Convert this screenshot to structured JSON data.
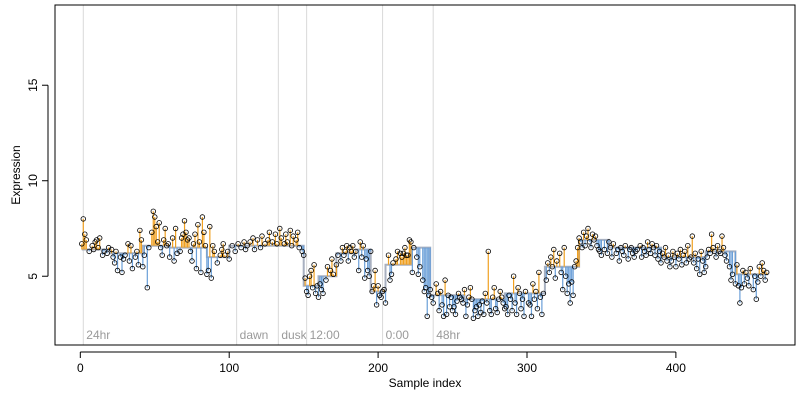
{
  "chart_data": {
    "type": "scatter",
    "title": "",
    "xlabel": "Sample index",
    "ylabel": "Expression",
    "xlim": [
      -17,
      480
    ],
    "ylim": [
      1.4,
      19.2
    ],
    "x_ticks": [
      0,
      100,
      200,
      300,
      400
    ],
    "y_ticks": [
      5,
      10,
      15
    ],
    "grid": false,
    "legend": "none",
    "colors": {
      "points_stroke": "#000000",
      "above_fit": "#f0a020",
      "below_fit": "#6a9fd8",
      "fitted_line": "#a8b0c0",
      "phase_line": "#d9d9d9",
      "phase_text": "#9a9a9a"
    },
    "phase_markers": [
      {
        "x": 2,
        "label": "24hr"
      },
      {
        "x": 105,
        "label": "dawn"
      },
      {
        "x": 133,
        "label": "dusk"
      },
      {
        "x": 152,
        "label": "12:00"
      },
      {
        "x": 203,
        "label": "0:00"
      },
      {
        "x": 237,
        "label": "48hr"
      }
    ],
    "fitted_segments": [
      {
        "x0": 1,
        "x1": 20,
        "y": 6.4
      },
      {
        "x0": 20,
        "x1": 42,
        "y": 6.2
      },
      {
        "x0": 42,
        "x1": 60,
        "y": 6.6
      },
      {
        "x0": 60,
        "x1": 85,
        "y": 6.5
      },
      {
        "x0": 85,
        "x1": 100,
        "y": 6.0
      },
      {
        "x0": 100,
        "x1": 150,
        "y": 6.6
      },
      {
        "x0": 150,
        "x1": 160,
        "y": 4.5
      },
      {
        "x0": 160,
        "x1": 172,
        "y": 5.0
      },
      {
        "x0": 172,
        "x1": 185,
        "y": 6.2
      },
      {
        "x0": 185,
        "x1": 195,
        "y": 6.4
      },
      {
        "x0": 195,
        "x1": 205,
        "y": 4.2
      },
      {
        "x0": 205,
        "x1": 222,
        "y": 5.6
      },
      {
        "x0": 222,
        "x1": 235,
        "y": 6.5
      },
      {
        "x0": 235,
        "x1": 258,
        "y": 4.0
      },
      {
        "x0": 258,
        "x1": 285,
        "y": 3.8
      },
      {
        "x0": 285,
        "x1": 312,
        "y": 4.1
      },
      {
        "x0": 312,
        "x1": 335,
        "y": 5.5
      },
      {
        "x0": 335,
        "x1": 355,
        "y": 6.9
      },
      {
        "x0": 355,
        "x1": 390,
        "y": 6.5
      },
      {
        "x0": 390,
        "x1": 420,
        "y": 6.0
      },
      {
        "x0": 420,
        "x1": 440,
        "y": 6.3
      },
      {
        "x0": 440,
        "x1": 462,
        "y": 5.1
      }
    ],
    "points": [
      [
        1,
        6.7
      ],
      [
        2,
        8.0
      ],
      [
        3,
        7.2
      ],
      [
        4,
        6.9
      ],
      [
        6,
        6.3
      ],
      [
        8,
        6.6
      ],
      [
        9,
        6.4
      ],
      [
        10,
        6.8
      ],
      [
        11,
        6.9
      ],
      [
        12,
        6.5
      ],
      [
        13,
        7.0
      ],
      [
        15,
        6.1
      ],
      [
        16,
        6.3
      ],
      [
        18,
        6.2
      ],
      [
        19,
        6.5
      ],
      [
        21,
        6.4
      ],
      [
        22,
        6.0
      ],
      [
        23,
        5.7
      ],
      [
        24,
        6.3
      ],
      [
        25,
        5.3
      ],
      [
        27,
        6.0
      ],
      [
        28,
        5.2
      ],
      [
        29,
        5.9
      ],
      [
        30,
        6.1
      ],
      [
        32,
        6.7
      ],
      [
        33,
        5.8
      ],
      [
        34,
        6.6
      ],
      [
        35,
        5.4
      ],
      [
        37,
        6.0
      ],
      [
        38,
        6.3
      ],
      [
        39,
        5.6
      ],
      [
        40,
        7.4
      ],
      [
        41,
        6.9
      ],
      [
        42,
        5.5
      ],
      [
        43,
        6.1
      ],
      [
        45,
        4.4
      ],
      [
        46,
        6.5
      ],
      [
        48,
        7.3
      ],
      [
        49,
        8.4
      ],
      [
        50,
        8.1
      ],
      [
        51,
        7.6
      ],
      [
        52,
        6.8
      ],
      [
        53,
        7.8
      ],
      [
        54,
        6.5
      ],
      [
        55,
        6.1
      ],
      [
        56,
        6.9
      ],
      [
        57,
        7.5
      ],
      [
        58,
        6.6
      ],
      [
        59,
        6.7
      ],
      [
        60,
        6.0
      ],
      [
        62,
        7.0
      ],
      [
        63,
        5.8
      ],
      [
        64,
        7.5
      ],
      [
        65,
        6.2
      ],
      [
        67,
        6.3
      ],
      [
        68,
        7.0
      ],
      [
        69,
        7.2
      ],
      [
        70,
        7.9
      ],
      [
        71,
        7.3
      ],
      [
        72,
        6.9
      ],
      [
        73,
        7.0
      ],
      [
        74,
        6.3
      ],
      [
        75,
        5.8
      ],
      [
        76,
        6.7
      ],
      [
        77,
        7.2
      ],
      [
        78,
        5.4
      ],
      [
        79,
        7.7
      ],
      [
        80,
        6.8
      ],
      [
        81,
        5.2
      ],
      [
        82,
        8.1
      ],
      [
        83,
        7.3
      ],
      [
        84,
        6.6
      ],
      [
        85,
        5.1
      ],
      [
        86,
        5.3
      ],
      [
        87,
        7.6
      ],
      [
        88,
        4.9
      ],
      [
        89,
        6.6
      ],
      [
        90,
        6.3
      ],
      [
        92,
        5.7
      ],
      [
        94,
        6.1
      ],
      [
        95,
        6.4
      ],
      [
        96,
        6.7
      ],
      [
        97,
        6.1
      ],
      [
        99,
        6.3
      ],
      [
        100,
        5.9
      ],
      [
        102,
        6.6
      ],
      [
        104,
        6.3
      ],
      [
        106,
        6.7
      ],
      [
        108,
        6.5
      ],
      [
        110,
        6.8
      ],
      [
        111,
        6.4
      ],
      [
        112,
        6.6
      ],
      [
        114,
        6.8
      ],
      [
        116,
        7.0
      ],
      [
        117,
        6.4
      ],
      [
        119,
        6.9
      ],
      [
        121,
        6.5
      ],
      [
        122,
        7.1
      ],
      [
        124,
        6.7
      ],
      [
        126,
        6.9
      ],
      [
        127,
        7.3
      ],
      [
        129,
        6.8
      ],
      [
        131,
        7.2
      ],
      [
        132,
        6.7
      ],
      [
        134,
        7.5
      ],
      [
        135,
        7.0
      ],
      [
        137,
        6.7
      ],
      [
        138,
        7.2
      ],
      [
        139,
        6.8
      ],
      [
        141,
        7.4
      ],
      [
        142,
        6.6
      ],
      [
        143,
        7.1
      ],
      [
        145,
        6.9
      ],
      [
        146,
        7.3
      ],
      [
        147,
        6.5
      ],
      [
        149,
        6.3
      ],
      [
        150,
        6.1
      ],
      [
        151,
        4.9
      ],
      [
        152,
        4.2
      ],
      [
        153,
        4.0
      ],
      [
        154,
        5.0
      ],
      [
        155,
        5.3
      ],
      [
        156,
        4.4
      ],
      [
        157,
        5.6
      ],
      [
        158,
        4.1
      ],
      [
        159,
        4.5
      ],
      [
        160,
        3.9
      ],
      [
        161,
        4.6
      ],
      [
        162,
        4.3
      ],
      [
        163,
        4.1
      ],
      [
        165,
        4.8
      ],
      [
        166,
        5.5
      ],
      [
        168,
        5.3
      ],
      [
        169,
        5.9
      ],
      [
        170,
        5.1
      ],
      [
        172,
        5.6
      ],
      [
        173,
        6.1
      ],
      [
        175,
        5.8
      ],
      [
        176,
        6.5
      ],
      [
        177,
        6.1
      ],
      [
        178,
        6.3
      ],
      [
        179,
        6.6
      ],
      [
        180,
        5.8
      ],
      [
        181,
        6.5
      ],
      [
        182,
        6.3
      ],
      [
        183,
        6.6
      ],
      [
        184,
        6.0
      ],
      [
        185,
        6.3
      ],
      [
        187,
        5.3
      ],
      [
        188,
        6.8
      ],
      [
        189,
        6.0
      ],
      [
        190,
        6.6
      ],
      [
        191,
        4.9
      ],
      [
        192,
        5.9
      ],
      [
        193,
        5.3
      ],
      [
        194,
        5.0
      ],
      [
        195,
        6.3
      ],
      [
        196,
        4.2
      ],
      [
        197,
        4.5
      ],
      [
        198,
        5.3
      ],
      [
        199,
        3.5
      ],
      [
        200,
        4.5
      ],
      [
        201,
        4.0
      ],
      [
        202,
        3.9
      ],
      [
        203,
        4.2
      ],
      [
        204,
        4.3
      ],
      [
        205,
        3.6
      ],
      [
        207,
        6.1
      ],
      [
        208,
        4.8
      ],
      [
        209,
        5.1
      ],
      [
        210,
        5.7
      ],
      [
        212,
        5.9
      ],
      [
        213,
        6.3
      ],
      [
        215,
        6.2
      ],
      [
        216,
        6.0
      ],
      [
        217,
        6.2
      ],
      [
        218,
        6.5
      ],
      [
        219,
        6.1
      ],
      [
        220,
        6.1
      ],
      [
        221,
        6.9
      ],
      [
        222,
        6.8
      ],
      [
        223,
        5.2
      ],
      [
        224,
        6.5
      ],
      [
        226,
        6.0
      ],
      [
        227,
        5.1
      ],
      [
        228,
        5.5
      ],
      [
        230,
        4.8
      ],
      [
        231,
        4.2
      ],
      [
        232,
        4.4
      ],
      [
        233,
        2.9
      ],
      [
        234,
        4.0
      ],
      [
        235,
        4.3
      ],
      [
        236,
        3.9
      ],
      [
        237,
        3.6
      ],
      [
        239,
        4.6
      ],
      [
        240,
        4.1
      ],
      [
        241,
        3.2
      ],
      [
        242,
        4.2
      ],
      [
        243,
        3.5
      ],
      [
        244,
        2.9
      ],
      [
        245,
        4.8
      ],
      [
        246,
        3.0
      ],
      [
        247,
        4.0
      ],
      [
        248,
        3.4
      ],
      [
        249,
        3.9
      ],
      [
        250,
        3.2
      ],
      [
        251,
        3.4
      ],
      [
        252,
        3.0
      ],
      [
        253,
        3.7
      ],
      [
        254,
        4.1
      ],
      [
        255,
        3.9
      ],
      [
        256,
        3.8
      ],
      [
        257,
        3.6
      ],
      [
        258,
        4.3
      ],
      [
        259,
        2.9
      ],
      [
        260,
        3.5
      ],
      [
        261,
        3.9
      ],
      [
        262,
        4.4
      ],
      [
        263,
        3.8
      ],
      [
        264,
        2.8
      ],
      [
        265,
        3.2
      ],
      [
        266,
        3.4
      ],
      [
        267,
        2.9
      ],
      [
        268,
        3.5
      ],
      [
        269,
        3.1
      ],
      [
        270,
        3.7
      ],
      [
        271,
        3.0
      ],
      [
        272,
        4.1
      ],
      [
        273,
        3.6
      ],
      [
        274,
        6.3
      ],
      [
        275,
        3.2
      ],
      [
        276,
        3.0
      ],
      [
        277,
        3.9
      ],
      [
        278,
        4.4
      ],
      [
        279,
        3.3
      ],
      [
        280,
        3.1
      ],
      [
        281,
        3.8
      ],
      [
        282,
        4.2
      ],
      [
        283,
        3.9
      ],
      [
        284,
        3.6
      ],
      [
        285,
        3.3
      ],
      [
        286,
        3.4
      ],
      [
        287,
        3.0
      ],
      [
        288,
        4.0
      ],
      [
        289,
        3.8
      ],
      [
        290,
        3.2
      ],
      [
        291,
        5.0
      ],
      [
        292,
        3.6
      ],
      [
        293,
        3.0
      ],
      [
        294,
        4.4
      ],
      [
        295,
        4.1
      ],
      [
        296,
        3.3
      ],
      [
        297,
        3.8
      ],
      [
        298,
        2.9
      ],
      [
        299,
        4.2
      ],
      [
        301,
        3.6
      ],
      [
        302,
        3.5
      ],
      [
        303,
        2.9
      ],
      [
        304,
        4.6
      ],
      [
        305,
        3.8
      ],
      [
        306,
        4.2
      ],
      [
        307,
        3.3
      ],
      [
        308,
        5.2
      ],
      [
        309,
        3.9
      ],
      [
        310,
        3.0
      ],
      [
        311,
        4.1
      ],
      [
        313,
        4.8
      ],
      [
        314,
        5.7
      ],
      [
        315,
        5.2
      ],
      [
        316,
        6.0
      ],
      [
        317,
        5.5
      ],
      [
        318,
        6.4
      ],
      [
        319,
        4.9
      ],
      [
        320,
        5.8
      ],
      [
        322,
        6.2
      ],
      [
        323,
        5.2
      ],
      [
        324,
        4.3
      ],
      [
        325,
        6.5
      ],
      [
        326,
        5.0
      ],
      [
        327,
        4.1
      ],
      [
        328,
        4.6
      ],
      [
        329,
        3.6
      ],
      [
        330,
        4.7
      ],
      [
        331,
        4.0
      ],
      [
        332,
        5.5
      ],
      [
        333,
        5.8
      ],
      [
        334,
        6.5
      ],
      [
        335,
        7.0
      ],
      [
        336,
        6.8
      ],
      [
        337,
        6.5
      ],
      [
        338,
        7.3
      ],
      [
        339,
        6.6
      ],
      [
        340,
        7.1
      ],
      [
        341,
        7.5
      ],
      [
        342,
        6.8
      ],
      [
        343,
        6.5
      ],
      [
        344,
        7.2
      ],
      [
        345,
        6.9
      ],
      [
        346,
        7.1
      ],
      [
        347,
        6.6
      ],
      [
        348,
        6.4
      ],
      [
        349,
        6.3
      ],
      [
        350,
        6.1
      ],
      [
        352,
        6.4
      ],
      [
        354,
        6.2
      ],
      [
        355,
        6.8
      ],
      [
        356,
        6.5
      ],
      [
        357,
        6.0
      ],
      [
        358,
        6.7
      ],
      [
        360,
        6.2
      ],
      [
        361,
        6.4
      ],
      [
        362,
        5.8
      ],
      [
        363,
        6.5
      ],
      [
        364,
        6.3
      ],
      [
        365,
        6.1
      ],
      [
        366,
        6.6
      ],
      [
        368,
        5.9
      ],
      [
        369,
        6.4
      ],
      [
        370,
        6.5
      ],
      [
        371,
        6.2
      ],
      [
        372,
        6.0
      ],
      [
        373,
        6.3
      ],
      [
        374,
        6.4
      ],
      [
        376,
        6.6
      ],
      [
        377,
        6.0
      ],
      [
        378,
        6.5
      ],
      [
        379,
        6.3
      ],
      [
        380,
        6.1
      ],
      [
        381,
        6.8
      ],
      [
        382,
        6.4
      ],
      [
        383,
        6.2
      ],
      [
        384,
        6.7
      ],
      [
        385,
        6.5
      ],
      [
        386,
        6.1
      ],
      [
        387,
        6.6
      ],
      [
        388,
        5.9
      ],
      [
        389,
        6.3
      ],
      [
        390,
        5.7
      ],
      [
        391,
        6.2
      ],
      [
        392,
        6.0
      ],
      [
        393,
        6.5
      ],
      [
        394,
        5.8
      ],
      [
        395,
        6.1
      ],
      [
        396,
        5.5
      ],
      [
        397,
        5.8
      ],
      [
        398,
        6.3
      ],
      [
        399,
        6.0
      ],
      [
        400,
        5.5
      ],
      [
        401,
        6.2
      ],
      [
        402,
        5.9
      ],
      [
        403,
        6.4
      ],
      [
        404,
        5.6
      ],
      [
        405,
        6.1
      ],
      [
        406,
        6.3
      ],
      [
        407,
        5.7
      ],
      [
        408,
        6.6
      ],
      [
        409,
        5.9
      ],
      [
        410,
        6.0
      ],
      [
        411,
        7.1
      ],
      [
        412,
        5.7
      ],
      [
        413,
        6.2
      ],
      [
        414,
        5.4
      ],
      [
        415,
        5.9
      ],
      [
        416,
        5.1
      ],
      [
        417,
        6.3
      ],
      [
        418,
        5.8
      ],
      [
        419,
        5.2
      ],
      [
        420,
        5.5
      ],
      [
        421,
        6.0
      ],
      [
        422,
        6.4
      ],
      [
        423,
        6.2
      ],
      [
        424,
        7.2
      ],
      [
        425,
        6.5
      ],
      [
        426,
        6.3
      ],
      [
        427,
        6.0
      ],
      [
        428,
        6.6
      ],
      [
        429,
        6.3
      ],
      [
        430,
        6.2
      ],
      [
        431,
        7.1
      ],
      [
        432,
        6.5
      ],
      [
        433,
        6.1
      ],
      [
        434,
        5.8
      ],
      [
        436,
        5.5
      ],
      [
        437,
        4.8
      ],
      [
        438,
        5.1
      ],
      [
        440,
        4.6
      ],
      [
        441,
        5.6
      ],
      [
        442,
        4.5
      ],
      [
        443,
        3.6
      ],
      [
        444,
        4.4
      ],
      [
        445,
        5.3
      ],
      [
        446,
        4.6
      ],
      [
        447,
        5.2
      ],
      [
        448,
        4.9
      ],
      [
        449,
        4.5
      ],
      [
        450,
        5.4
      ],
      [
        452,
        4.3
      ],
      [
        453,
        5.0
      ],
      [
        454,
        3.8
      ],
      [
        455,
        4.7
      ],
      [
        456,
        5.5
      ],
      [
        457,
        5.0
      ],
      [
        458,
        5.7
      ],
      [
        459,
        5.3
      ],
      [
        460,
        4.8
      ],
      [
        461,
        5.2
      ]
    ]
  }
}
